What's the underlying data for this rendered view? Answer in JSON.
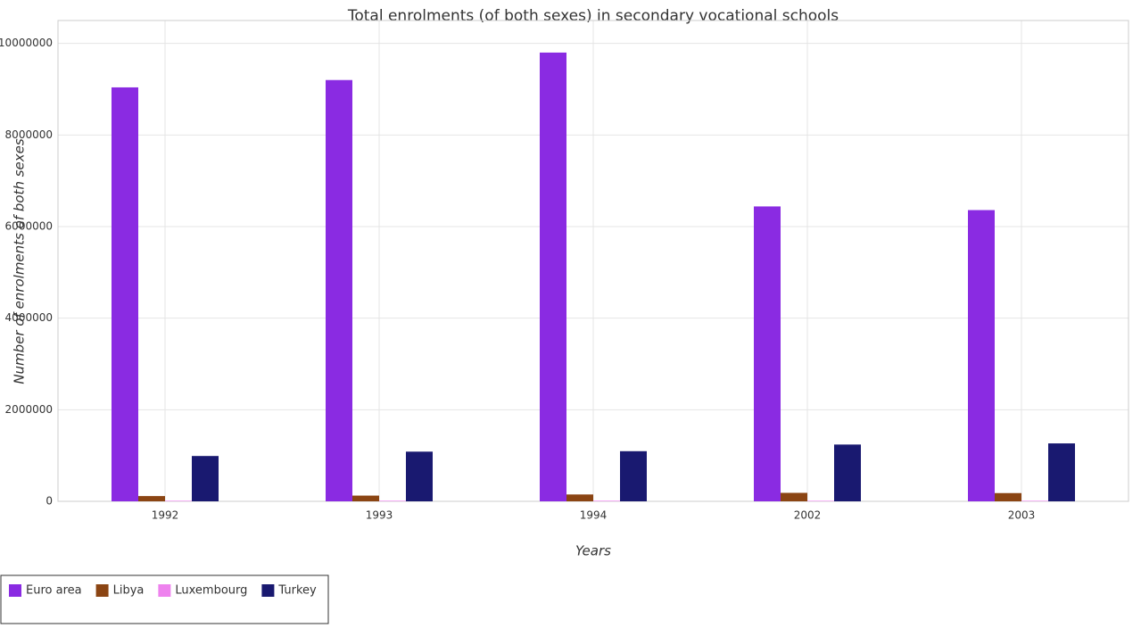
{
  "chart_data": {
    "type": "bar",
    "title": "Total enrolments (of both sexes) in secondary vocational schools",
    "x_label": "Years",
    "y_label": "Number of enrolments of both sexes",
    "categories": [
      "1992",
      "1993",
      "1994",
      "2002",
      "2003"
    ],
    "series": [
      {
        "name": "Euro area",
        "color": "#8a2be2",
        "values": [
          9040000,
          9200000,
          9800000,
          6440000,
          6360000
        ]
      },
      {
        "name": "Libya",
        "color": "#8b4513",
        "values": [
          115000,
          125000,
          150000,
          185000,
          180000
        ]
      },
      {
        "name": "Luxembourg",
        "color": "#ee82ee",
        "values": [
          12000,
          12500,
          13000,
          11000,
          11500
        ]
      },
      {
        "name": "Turkey",
        "color": "#191970",
        "values": [
          990000,
          1085000,
          1095000,
          1240000,
          1265000
        ]
      }
    ],
    "ylim": [
      0,
      10500000
    ],
    "yticks": [
      0,
      2000000,
      4000000,
      6000000,
      8000000,
      10000000
    ],
    "grid": true,
    "legend": "bottom-left"
  }
}
